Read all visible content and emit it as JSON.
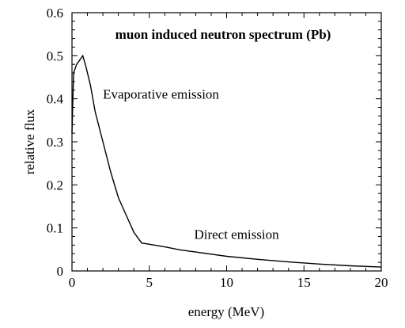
{
  "chart_data": {
    "type": "line",
    "title": "muon induced neutron spectrum (Pb)",
    "xlabel": "energy (MeV)",
    "ylabel": "relative flux",
    "xlim": [
      0,
      20
    ],
    "ylim": [
      0,
      0.6
    ],
    "x_ticks": [
      "0",
      "5",
      "10",
      "15",
      "20"
    ],
    "y_ticks": [
      "0",
      "0.1",
      "0.2",
      "0.3",
      "0.4",
      "0.5",
      "0.6"
    ],
    "x_tick_values": [
      0,
      5,
      10,
      15,
      20
    ],
    "y_tick_values": [
      0,
      0.1,
      0.2,
      0.3,
      0.4,
      0.5,
      0.6
    ],
    "grid": false,
    "series": [
      {
        "x": [
          0.0,
          0.1,
          0.3,
          0.5,
          0.7,
          0.9,
          1.2,
          1.5,
          2.0,
          2.5,
          3.0,
          3.5,
          4.0,
          4.5,
          5.0,
          6.0,
          7.0,
          8.0,
          9.0,
          10.0,
          12.0,
          14.0,
          16.0,
          18.0,
          20.0
        ],
        "y": [
          0.32,
          0.46,
          0.48,
          0.49,
          0.5,
          0.475,
          0.43,
          0.37,
          0.3,
          0.23,
          0.17,
          0.13,
          0.09,
          0.065,
          0.062,
          0.056,
          0.049,
          0.044,
          0.039,
          0.034,
          0.027,
          0.021,
          0.016,
          0.012,
          0.009
        ]
      }
    ],
    "annotations": [
      {
        "text": "Evaporative emission",
        "x": 2.0,
        "y": 0.4
      },
      {
        "text": "Direct emission",
        "x": 7.9,
        "y": 0.075
      }
    ]
  }
}
